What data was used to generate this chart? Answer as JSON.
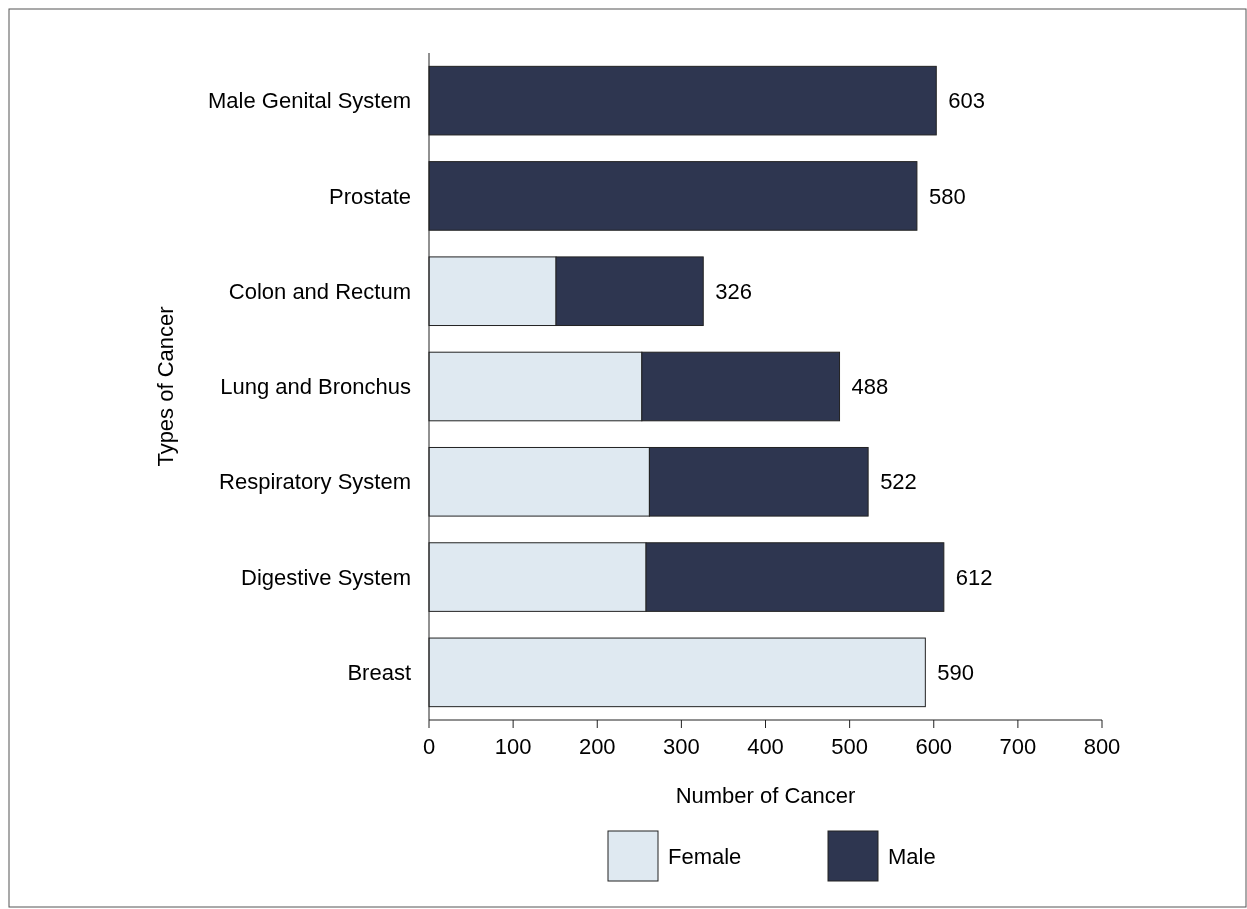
{
  "chart_data": {
    "type": "bar",
    "orientation": "horizontal",
    "stacked": true,
    "categories": [
      "Male Genital System",
      "Prostate",
      "Colon and Rectum",
      "Lung and Bronchus",
      "Respiratory System",
      "Digestive System",
      "Breast"
    ],
    "series": [
      {
        "name": "Female",
        "color": "#dfe9f1",
        "values": [
          null,
          null,
          151,
          253,
          262,
          258,
          590
        ]
      },
      {
        "name": "Male",
        "color": "#2e3650",
        "values": [
          603,
          580,
          175,
          235,
          260,
          354,
          null
        ]
      }
    ],
    "totals": [
      "603",
      "580",
      "326",
      "488",
      "522",
      "612",
      "590"
    ],
    "xlim": [
      0,
      800
    ],
    "xticks": [
      0,
      100,
      200,
      300,
      400,
      500,
      600,
      700,
      800
    ],
    "xlabel": "Number of Cancer",
    "ylabel": "Types of Cancer",
    "legend": "bottom",
    "grid": false
  }
}
